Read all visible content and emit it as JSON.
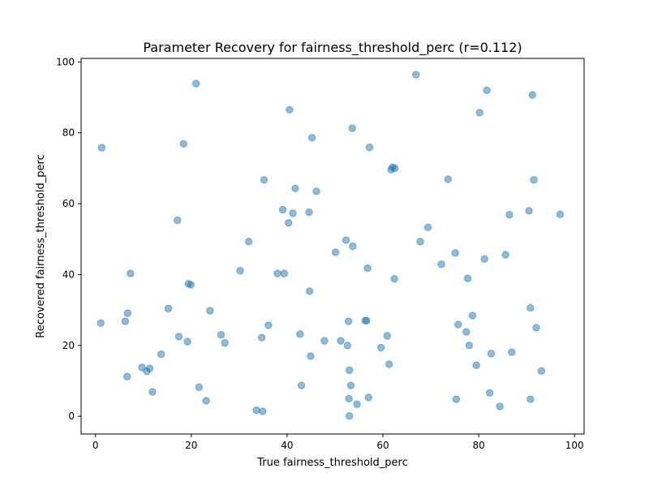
{
  "chart_data": {
    "type": "scatter",
    "title": "Parameter Recovery for fairness_threshold_perc (r=0.112)",
    "xlabel": "True fairness_threshold_perc",
    "ylabel": "Recovered fairness_threshold_perc",
    "xlim": [
      -3,
      102
    ],
    "ylim": [
      -5,
      101
    ],
    "xticks": [
      0,
      20,
      40,
      60,
      80,
      100
    ],
    "yticks": [
      0,
      20,
      40,
      60,
      80,
      100
    ],
    "grid": false,
    "legend": "none",
    "color": "#1f77b4",
    "series": [
      {
        "x": [
          1.1,
          1.3,
          6.2,
          6.6,
          6.7,
          7.3,
          9.7,
          10.7,
          11.3,
          11.9,
          13.7,
          15.2,
          17.1,
          17.4,
          18.4,
          19.2,
          19.4,
          19.9,
          21.0,
          21.6,
          23.1,
          23.9,
          26.2,
          27.0,
          30.2,
          32.0,
          33.6,
          34.7,
          34.9,
          35.2,
          36.1,
          38.0,
          39.1,
          39.4,
          40.3,
          40.5,
          41.2,
          41.7,
          42.7,
          43.0,
          44.6,
          44.7,
          44.9,
          45.2,
          46.1,
          47.8,
          50.1,
          51.2,
          52.3,
          52.6,
          52.8,
          52.9,
          53.0,
          53.0,
          53.3,
          53.6,
          53.7,
          54.6,
          56.3,
          56.6,
          56.8,
          57.0,
          57.2,
          59.6,
          60.9,
          61.3,
          61.7,
          62.0,
          62.4,
          62.5,
          66.9,
          67.8,
          69.4,
          72.2,
          73.6,
          75.1,
          75.3,
          75.7,
          77.4,
          77.7,
          78.0,
          78.7,
          79.5,
          80.2,
          81.2,
          81.7,
          82.3,
          82.6,
          84.4,
          85.6,
          86.4,
          86.9,
          90.5,
          90.8,
          90.8,
          91.2,
          91.5,
          92.0,
          93.1,
          97.0
        ],
        "y": [
          26.3,
          75.8,
          26.8,
          11.2,
          29.1,
          40.3,
          13.8,
          12.7,
          13.5,
          6.9,
          17.5,
          30.4,
          55.3,
          22.5,
          76.9,
          21.1,
          37.4,
          37.1,
          93.9,
          8.2,
          4.4,
          29.8,
          23.0,
          20.7,
          41.1,
          49.3,
          1.7,
          22.2,
          1.4,
          66.7,
          25.7,
          40.3,
          58.3,
          40.3,
          54.6,
          86.5,
          57.3,
          64.3,
          23.2,
          8.7,
          57.6,
          35.3,
          17.0,
          78.6,
          63.5,
          21.3,
          46.3,
          21.3,
          49.7,
          20.0,
          26.8,
          5.0,
          0.1,
          13.0,
          8.7,
          81.3,
          48.0,
          3.4,
          27.0,
          27.0,
          41.8,
          5.3,
          75.9,
          19.4,
          22.7,
          14.7,
          69.6,
          70.3,
          38.8,
          70.0,
          96.4,
          49.3,
          53.3,
          42.9,
          66.9,
          46.1,
          4.8,
          25.9,
          23.8,
          38.9,
          20.0,
          28.4,
          14.4,
          85.7,
          44.4,
          92.0,
          6.6,
          17.7,
          2.8,
          45.6,
          56.9,
          18.1,
          58.0,
          30.6,
          4.8,
          90.7,
          66.7,
          25.0,
          12.8,
          57.0
        ]
      }
    ]
  }
}
